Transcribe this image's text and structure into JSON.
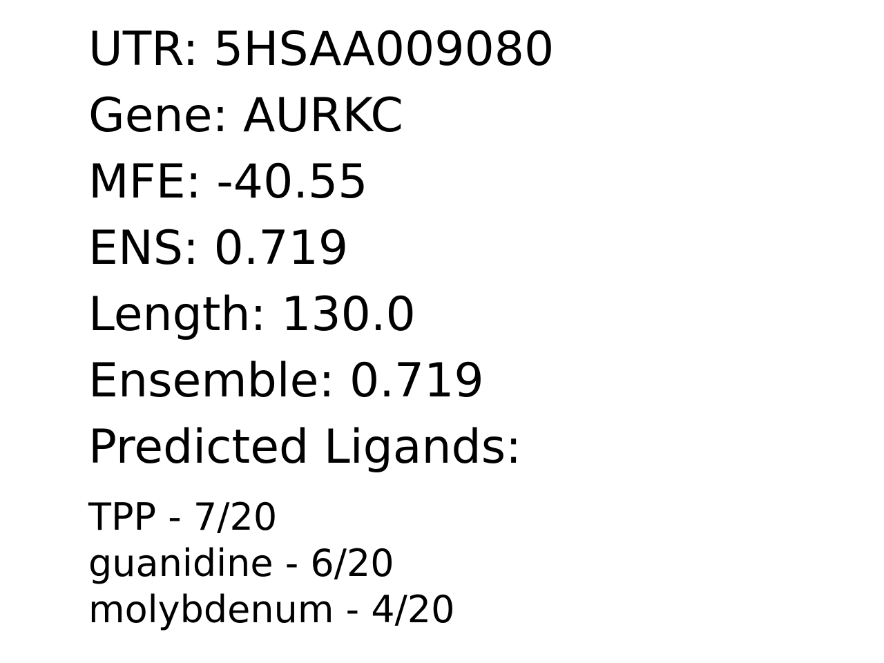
{
  "record": {
    "utr": "UTR: 5HSAA009080",
    "gene": "Gene: AURKC",
    "mfe": "MFE: -40.55",
    "ens": "ENS: 0.719",
    "length": "Length: 130.0",
    "ensemble": "Ensemble: 0.719",
    "ligands_heading": "Predicted Ligands:"
  },
  "ligands": [
    "TPP - 7/20",
    "guanidine - 6/20",
    "molybdenum - 4/20"
  ]
}
